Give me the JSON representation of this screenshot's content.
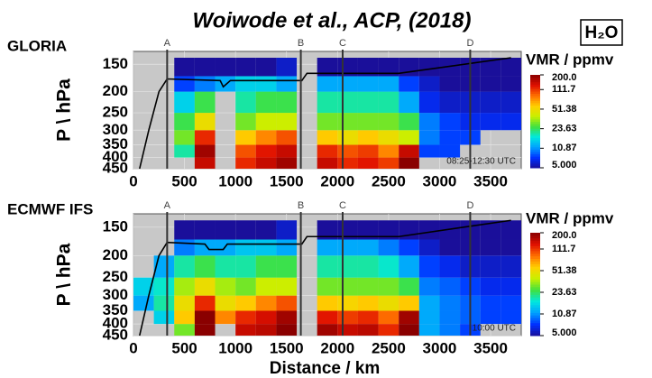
{
  "title": "Woiwode et al., ACP, (2018)",
  "species": "H₂O",
  "chart_data": [
    {
      "type": "heatmap",
      "title": "GLORIA",
      "ylabel": "P \\ hPa",
      "annotation": "08:25-12:30 UTC",
      "xlim": [
        0,
        3800
      ],
      "xticks": [
        0,
        500,
        1000,
        1500,
        2000,
        2500,
        3000,
        3500
      ],
      "ylim": [
        450,
        131
      ],
      "log_y": true,
      "yticks": [
        150,
        200,
        250,
        300,
        350,
        400,
        450
      ],
      "grid": true,
      "x_edges": [
        0,
        200,
        400,
        600,
        800,
        1000,
        1200,
        1400,
        1600,
        1800,
        2000,
        2200,
        2400,
        2600,
        2800,
        3000,
        3200,
        3400,
        3600,
        3800
      ],
      "p_edges": [
        450,
        400,
        350,
        300,
        250,
        200,
        170,
        140
      ],
      "z": [
        [
          null,
          null,
          null,
          150,
          null,
          120,
          150,
          180,
          null,
          150,
          120,
          130,
          110,
          200,
          null,
          null,
          null,
          null,
          null
        ],
        [
          null,
          null,
          20,
          180,
          null,
          100,
          130,
          150,
          null,
          120,
          100,
          110,
          80,
          150,
          8,
          8,
          null,
          null,
          null
        ],
        [
          null,
          null,
          30,
          120,
          null,
          60,
          80,
          100,
          null,
          60,
          50,
          60,
          50,
          40,
          10,
          8,
          8,
          null,
          null
        ],
        [
          null,
          null,
          25,
          50,
          null,
          30,
          40,
          40,
          null,
          30,
          30,
          30,
          30,
          25,
          10,
          8,
          7,
          7,
          7
        ],
        [
          null,
          null,
          15,
          25,
          null,
          20,
          25,
          25,
          null,
          20,
          20,
          20,
          20,
          12,
          7,
          6,
          6,
          6,
          6
        ],
        [
          null,
          null,
          8,
          10,
          12,
          15,
          15,
          12,
          null,
          12,
          12,
          12,
          12,
          8,
          6,
          5,
          5,
          5,
          5
        ],
        [
          null,
          null,
          5,
          5,
          5,
          5,
          5,
          6,
          null,
          5,
          5,
          5,
          5,
          5,
          5,
          5,
          5,
          5,
          5
        ]
      ],
      "line": {
        "x": [
          60,
          150,
          250,
          330,
          850,
          880,
          950,
          1650,
          1700,
          2600,
          3700
        ],
        "values": [
          450,
          300,
          200,
          175,
          178,
          190,
          178,
          178,
          165,
          165,
          140
        ]
      },
      "markers": {
        "labels": [
          "A",
          "B",
          "C",
          "D"
        ],
        "x": [
          330,
          1640,
          2050,
          3300
        ]
      },
      "colorbar": {
        "label": "VMR / ppmv",
        "clim": [
          5,
          200
        ],
        "ticks": [
          {
            "value": 200,
            "label": "200.0"
          },
          111.7,
          51.38,
          23.63,
          10.87,
          {
            "value": 5,
            "label": "5.000"
          }
        ]
      },
      "colormap": [
        "#1a0f9a",
        "#0030ff",
        "#00a0ff",
        "#00e8e0",
        "#40e040",
        "#c8f000",
        "#ffd000",
        "#ff7000",
        "#e01000",
        "#8a0000"
      ]
    },
    {
      "type": "heatmap",
      "title": "ECMWF IFS",
      "ylabel": "P \\ hPa",
      "annotation": "10:00 UTC",
      "xlabel": "Distance / km",
      "xlim": [
        0,
        3800
      ],
      "xticks": [
        0,
        500,
        1000,
        1500,
        2000,
        2500,
        3000,
        3500
      ],
      "ylim": [
        450,
        131
      ],
      "log_y": true,
      "yticks": [
        150,
        200,
        250,
        300,
        350,
        400,
        450
      ],
      "grid": true,
      "x_edges": [
        0,
        200,
        400,
        600,
        800,
        1000,
        1200,
        1400,
        1600,
        1800,
        2000,
        2200,
        2400,
        2600,
        2800,
        3000,
        3200,
        3400,
        3600,
        3800
      ],
      "p_edges": [
        450,
        400,
        350,
        300,
        250,
        200,
        170,
        140
      ],
      "z": [
        [
          null,
          null,
          30,
          200,
          null,
          150,
          160,
          200,
          null,
          180,
          150,
          160,
          120,
          200,
          12,
          10,
          8,
          null,
          null
        ],
        [
          null,
          15,
          60,
          200,
          80,
          120,
          140,
          180,
          null,
          130,
          110,
          120,
          90,
          180,
          12,
          10,
          9,
          8,
          8
        ],
        [
          12,
          20,
          50,
          120,
          50,
          60,
          80,
          100,
          null,
          60,
          55,
          60,
          50,
          60,
          12,
          10,
          9,
          8,
          8
        ],
        [
          15,
          18,
          35,
          50,
          35,
          30,
          40,
          40,
          null,
          30,
          30,
          30,
          30,
          25,
          10,
          9,
          8,
          7,
          7
        ],
        [
          null,
          12,
          20,
          25,
          20,
          20,
          25,
          25,
          null,
          20,
          20,
          20,
          18,
          12,
          8,
          7,
          6,
          6,
          6
        ],
        [
          null,
          null,
          10,
          12,
          12,
          14,
          14,
          12,
          null,
          12,
          12,
          12,
          10,
          8,
          6,
          5,
          5,
          5,
          5
        ],
        [
          null,
          null,
          5,
          5,
          5,
          5,
          5,
          6,
          null,
          5,
          5,
          5,
          5,
          5,
          5,
          5,
          5,
          5,
          5
        ]
      ],
      "line": {
        "x": [
          60,
          150,
          250,
          330,
          700,
          740,
          880,
          920,
          1650,
          1700,
          2600,
          3700
        ],
        "values": [
          450,
          300,
          200,
          175,
          178,
          188,
          188,
          178,
          178,
          165,
          165,
          140
        ]
      },
      "markers": {
        "labels": [
          "A",
          "B",
          "C",
          "D"
        ],
        "x": [
          330,
          1640,
          2050,
          3300
        ]
      },
      "colorbar": {
        "label": "VMR / ppmv",
        "clim": [
          5,
          200
        ],
        "ticks": [
          {
            "value": 200,
            "label": "200.0"
          },
          111.7,
          51.38,
          23.63,
          10.87,
          {
            "value": 5,
            "label": "5.000"
          }
        ]
      },
      "colormap": [
        "#1a0f9a",
        "#0030ff",
        "#00a0ff",
        "#00e8e0",
        "#40e040",
        "#c8f000",
        "#ffd000",
        "#ff7000",
        "#e01000",
        "#8a0000"
      ]
    }
  ]
}
